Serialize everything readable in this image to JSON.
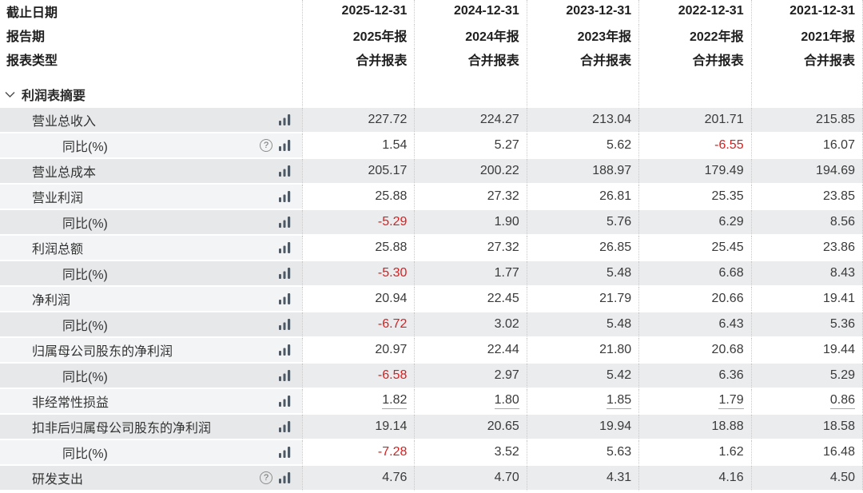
{
  "table": {
    "header_rows": [
      {
        "label": "截止日期",
        "values": [
          "2025-12-31",
          "2024-12-31",
          "2023-12-31",
          "2022-12-31",
          "2021-12-31"
        ]
      },
      {
        "label": "报告期",
        "values": [
          "2025年报",
          "2024年报",
          "2023年报",
          "2022年报",
          "2021年报"
        ]
      },
      {
        "label": "报表类型",
        "values": [
          "合并报表",
          "合并报表",
          "合并报表",
          "合并报表",
          "合并报表"
        ]
      }
    ],
    "section_title": "利润表摘要",
    "rows": [
      {
        "label": "营业总收入",
        "indent": 1,
        "help": false,
        "chart": true,
        "underline": false,
        "values": [
          "227.72",
          "224.27",
          "213.04",
          "201.71",
          "215.85"
        ]
      },
      {
        "label": "同比(%)",
        "indent": 2,
        "help": true,
        "chart": true,
        "underline": false,
        "values": [
          "1.54",
          "5.27",
          "5.62",
          "-6.55",
          "16.07"
        ]
      },
      {
        "label": "营业总成本",
        "indent": 1,
        "help": false,
        "chart": true,
        "underline": false,
        "values": [
          "205.17",
          "200.22",
          "188.97",
          "179.49",
          "194.69"
        ]
      },
      {
        "label": "营业利润",
        "indent": 1,
        "help": false,
        "chart": true,
        "underline": false,
        "values": [
          "25.88",
          "27.32",
          "26.81",
          "25.35",
          "23.85"
        ]
      },
      {
        "label": "同比(%)",
        "indent": 2,
        "help": false,
        "chart": true,
        "underline": false,
        "values": [
          "-5.29",
          "1.90",
          "5.76",
          "6.29",
          "8.56"
        ]
      },
      {
        "label": "利润总额",
        "indent": 1,
        "help": false,
        "chart": true,
        "underline": false,
        "values": [
          "25.88",
          "27.32",
          "26.85",
          "25.45",
          "23.86"
        ]
      },
      {
        "label": "同比(%)",
        "indent": 2,
        "help": false,
        "chart": true,
        "underline": false,
        "values": [
          "-5.30",
          "1.77",
          "5.48",
          "6.68",
          "8.43"
        ]
      },
      {
        "label": "净利润",
        "indent": 1,
        "help": false,
        "chart": true,
        "underline": false,
        "values": [
          "20.94",
          "22.45",
          "21.79",
          "20.66",
          "19.41"
        ]
      },
      {
        "label": "同比(%)",
        "indent": 2,
        "help": false,
        "chart": true,
        "underline": false,
        "values": [
          "-6.72",
          "3.02",
          "5.48",
          "6.43",
          "5.36"
        ]
      },
      {
        "label": "归属母公司股东的净利润",
        "indent": 1,
        "help": false,
        "chart": true,
        "underline": false,
        "values": [
          "20.97",
          "22.44",
          "21.80",
          "20.68",
          "19.44"
        ]
      },
      {
        "label": "同比(%)",
        "indent": 2,
        "help": false,
        "chart": true,
        "underline": false,
        "values": [
          "-6.58",
          "2.97",
          "5.42",
          "6.36",
          "5.29"
        ]
      },
      {
        "label": "非经常性损益",
        "indent": 1,
        "help": false,
        "chart": true,
        "underline": true,
        "values": [
          "1.82",
          "1.80",
          "1.85",
          "1.79",
          "0.86"
        ]
      },
      {
        "label": "扣非后归属母公司股东的净利润",
        "indent": 1,
        "help": false,
        "chart": true,
        "underline": false,
        "values": [
          "19.14",
          "20.65",
          "19.94",
          "18.88",
          "18.58"
        ]
      },
      {
        "label": "同比(%)",
        "indent": 2,
        "help": false,
        "chart": true,
        "underline": false,
        "values": [
          "-7.28",
          "3.52",
          "5.63",
          "1.62",
          "16.48"
        ]
      },
      {
        "label": "研发支出",
        "indent": 1,
        "help": true,
        "chart": true,
        "underline": false,
        "values": [
          "4.76",
          "4.70",
          "4.31",
          "4.16",
          "4.50"
        ]
      }
    ]
  },
  "icons": {
    "help_glyph": "?",
    "collapse": "chevron-down",
    "chart": "bar-chart"
  },
  "colors": {
    "negative_value": "#d91e1e",
    "text": "#333333",
    "header_text": "#1e1e1e",
    "row_gray_label": "#e7e8ea",
    "row_gray_value": "#ebecee",
    "row_light_label": "#f3f4f5",
    "divider_dotted": "#c8c8c8",
    "chart_icon": "#4d5964"
  }
}
